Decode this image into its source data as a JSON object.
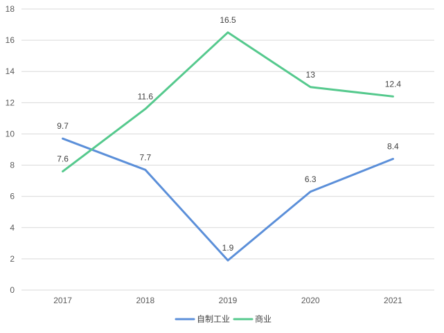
{
  "chart_data": {
    "type": "line",
    "title": "",
    "xlabel": "",
    "ylabel": "",
    "categories": [
      "2017",
      "2018",
      "2019",
      "2020",
      "2021"
    ],
    "ylim": [
      0,
      18
    ],
    "yticks": [
      0,
      2,
      4,
      6,
      8,
      10,
      12,
      14,
      16,
      18
    ],
    "grid": true,
    "legend_position": "bottom",
    "series": [
      {
        "name": "自制工业",
        "color": "#5B8FD9",
        "values": [
          9.7,
          7.7,
          1.9,
          6.3,
          8.4
        ],
        "labels": [
          "9.7",
          "7.7",
          "1.9",
          "6.3",
          "8.4"
        ]
      },
      {
        "name": "商业",
        "color": "#55C98D",
        "values": [
          7.6,
          11.6,
          16.5,
          13,
          12.4
        ],
        "labels": [
          "7.6",
          "11.6",
          "16.5",
          "13",
          "12.4"
        ]
      }
    ]
  }
}
